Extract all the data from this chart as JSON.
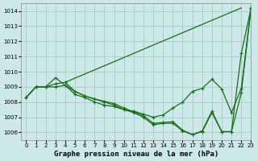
{
  "title": "Graphe pression niveau de la mer (hPa)",
  "background_color": "#cce8e8",
  "grid_color": "#aacece",
  "line_color": "#1a6e1a",
  "xlim": [
    -0.5,
    23
  ],
  "ylim": [
    1005.5,
    1014.5
  ],
  "yticks": [
    1006,
    1007,
    1008,
    1009,
    1010,
    1011,
    1012,
    1013,
    1014
  ],
  "xticks": [
    0,
    1,
    2,
    3,
    4,
    5,
    6,
    7,
    8,
    9,
    10,
    11,
    12,
    13,
    14,
    15,
    16,
    17,
    18,
    19,
    20,
    21,
    22,
    23
  ],
  "series": [
    {
      "x": [
        0,
        1,
        2,
        3,
        4,
        5,
        6,
        7,
        8,
        9,
        10,
        11,
        12,
        13,
        14,
        15,
        16,
        17,
        18,
        19,
        20,
        21,
        22,
        23
      ],
      "y": [
        1008.3,
        1009.0,
        1009.0,
        1009.2,
        1009.3,
        1008.7,
        1008.4,
        1008.2,
        1008.0,
        1007.8,
        1007.5,
        1007.3,
        1007.0,
        1006.5,
        1006.6,
        1006.6,
        1006.1,
        1005.85,
        1006.1,
        1007.4,
        1006.05,
        1006.05,
        1008.6,
        1014.2
      ]
    },
    {
      "x": [
        4,
        22
      ],
      "y": [
        1009.3,
        1014.2
      ]
    },
    {
      "x": [
        0,
        1,
        2,
        3,
        4,
        5,
        6,
        7,
        8,
        9,
        10,
        11,
        12,
        13,
        14,
        15,
        16,
        17,
        18,
        19,
        20,
        21,
        22,
        23
      ],
      "y": [
        1008.3,
        1009.0,
        1009.0,
        1009.0,
        1009.1,
        1008.5,
        1008.3,
        1008.0,
        1007.8,
        1007.7,
        1007.5,
        1007.4,
        1007.2,
        1007.0,
        1007.15,
        1007.6,
        1008.0,
        1008.7,
        1008.9,
        1009.5,
        1008.85,
        1007.3,
        1008.9,
        1014.2
      ]
    },
    {
      "x": [
        0,
        1,
        2,
        3,
        4,
        5,
        6,
        7,
        8,
        9,
        10,
        11,
        12,
        13,
        14,
        15,
        16,
        17,
        18,
        19,
        20,
        21,
        22,
        23
      ],
      "y": [
        1008.3,
        1009.0,
        1009.0,
        1009.6,
        1009.1,
        1008.7,
        1008.4,
        1008.2,
        1008.05,
        1007.9,
        1007.6,
        1007.35,
        1007.1,
        1006.6,
        1006.65,
        1006.7,
        1006.15,
        1005.85,
        1006.05,
        1007.3,
        1006.05,
        1006.05,
        1011.2,
        1014.2
      ]
    }
  ],
  "marker": "+",
  "markersize": 3.5,
  "linewidth": 0.9,
  "title_fontsize": 6.5,
  "tick_fontsize": 5.0,
  "ylabel_fontsize": 5.0
}
